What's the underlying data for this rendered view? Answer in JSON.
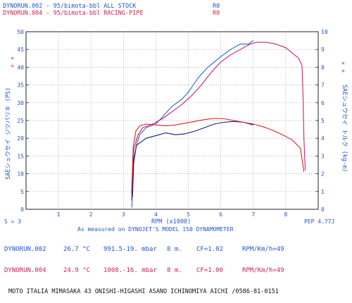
{
  "header": {
    "run1": {
      "id": "DYNORUN.002",
      "sep": " - ",
      "desc": "95/bimota-bbl ALL STOCK",
      "code": "R0"
    },
    "run2": {
      "id": "DYNORUN.004",
      "sep": " - ",
      "desc": "95/bimota-bbl RACING-PIPE",
      "code": "R0"
    }
  },
  "left_marks": "* *",
  "right_marks": "* *",
  "chart_data": {
    "type": "line",
    "title": "",
    "xlabel": "RPM (x1000)",
    "ylabel_left": "SAEシュウセイ ジツバリキ (PS)",
    "ylabel_right": "SAEシュウセイ トルク (kg-m)",
    "xlim": [
      0,
      9
    ],
    "ylim_left": [
      0,
      50
    ],
    "ylim_right": [
      0,
      10
    ],
    "x_ticks": [
      "1",
      "2",
      "3",
      "4",
      "5",
      "6",
      "7",
      "8"
    ],
    "y_ticks_left": [
      "0",
      "5",
      "10",
      "15",
      "20",
      "25",
      "30",
      "35",
      "40",
      "45",
      "50"
    ],
    "y_ticks_right": [
      "0",
      "1",
      "2",
      "3",
      "4",
      "5",
      "6",
      "7",
      "8",
      "9",
      "10"
    ],
    "grid": true,
    "series": [
      {
        "name": "DYNORUN.002",
        "metric": "power_ps",
        "color": "#2266dd",
        "x": [
          3.26,
          3.3,
          3.4,
          3.5,
          3.7,
          4.0,
          4.2,
          4.5,
          4.8,
          5.0,
          5.3,
          5.6,
          6.0,
          6.3,
          6.6,
          6.85,
          7.0
        ],
        "y": [
          0.5,
          12,
          18,
          21,
          23,
          24,
          26,
          29,
          31,
          33,
          37,
          40,
          43,
          45,
          46.5,
          46.5,
          47.5
        ]
      },
      {
        "name": "DYNORUN.004",
        "metric": "power_ps",
        "color": "#cc2266",
        "x": [
          3.25,
          3.32,
          3.45,
          3.6,
          3.9,
          4.2,
          4.5,
          4.8,
          5.1,
          5.4,
          5.7,
          6.0,
          6.3,
          6.6,
          6.9,
          7.1,
          7.4,
          7.7,
          8.0,
          8.2,
          8.4,
          8.5,
          8.53,
          8.56,
          8.6
        ],
        "y": [
          2.5,
          17,
          21,
          23,
          24,
          25.5,
          27.5,
          29.5,
          32,
          35,
          38.5,
          41.5,
          43.5,
          45,
          46.5,
          47,
          47,
          46.5,
          45.5,
          44,
          42.5,
          40.5,
          33,
          20,
          11
        ]
      },
      {
        "name": "DYNORUN.002",
        "metric": "torque_kgm",
        "color": "#102070",
        "x": [
          3.28,
          3.32,
          3.4,
          3.55,
          3.7,
          3.9,
          4.1,
          4.3,
          4.6,
          4.9,
          5.2,
          5.5,
          5.8,
          6.1,
          6.4,
          6.7,
          7.0
        ],
        "y": [
          0.7,
          2.8,
          3.6,
          3.8,
          4.0,
          4.1,
          4.2,
          4.3,
          4.2,
          4.25,
          4.4,
          4.6,
          4.8,
          4.9,
          4.95,
          4.9,
          4.75
        ]
      },
      {
        "name": "DYNORUN.004",
        "metric": "torque_kgm",
        "color": "#dd2222",
        "x": [
          3.25,
          3.3,
          3.38,
          3.5,
          3.7,
          4.0,
          4.3,
          4.6,
          4.9,
          5.2,
          5.5,
          5.8,
          6.1,
          6.4,
          6.7,
          7.0,
          7.3,
          7.6,
          7.9,
          8.2,
          8.45,
          8.52,
          8.56
        ],
        "y": [
          0.9,
          3.5,
          4.4,
          4.7,
          4.8,
          4.75,
          4.7,
          4.75,
          4.85,
          4.95,
          5.05,
          5.12,
          5.1,
          5.0,
          4.9,
          4.8,
          4.65,
          4.45,
          4.2,
          3.9,
          3.45,
          2.6,
          2.1
        ]
      }
    ]
  },
  "footer": {
    "s_label": "S = 3",
    "measure_note": "As measured on DYNOJET'S MODEL 150 DYNAMOMETER",
    "pep": "PEP 4.77J"
  },
  "runs": [
    {
      "id": "DYNORUN.002",
      "temp": "26.7 °C",
      "pressure": "991.5-19. mbar",
      "dist": "8 m.",
      "cf": "CF=1.02",
      "rpm": "RPM/Km/h=49"
    },
    {
      "id": "DYNORUN.004",
      "temp": "24.9 °C",
      "pressure": "1008.-16. mbar",
      "dist": "8 m.",
      "cf": "CF=1.00",
      "rpm": "RPM/Km/h=49"
    }
  ],
  "shop_line": "MOTO ITALIA MIMASAKA  43 ONISHI-HIGASHI ASANO ICHINOMIYA AICHI /0586-81-0151"
}
